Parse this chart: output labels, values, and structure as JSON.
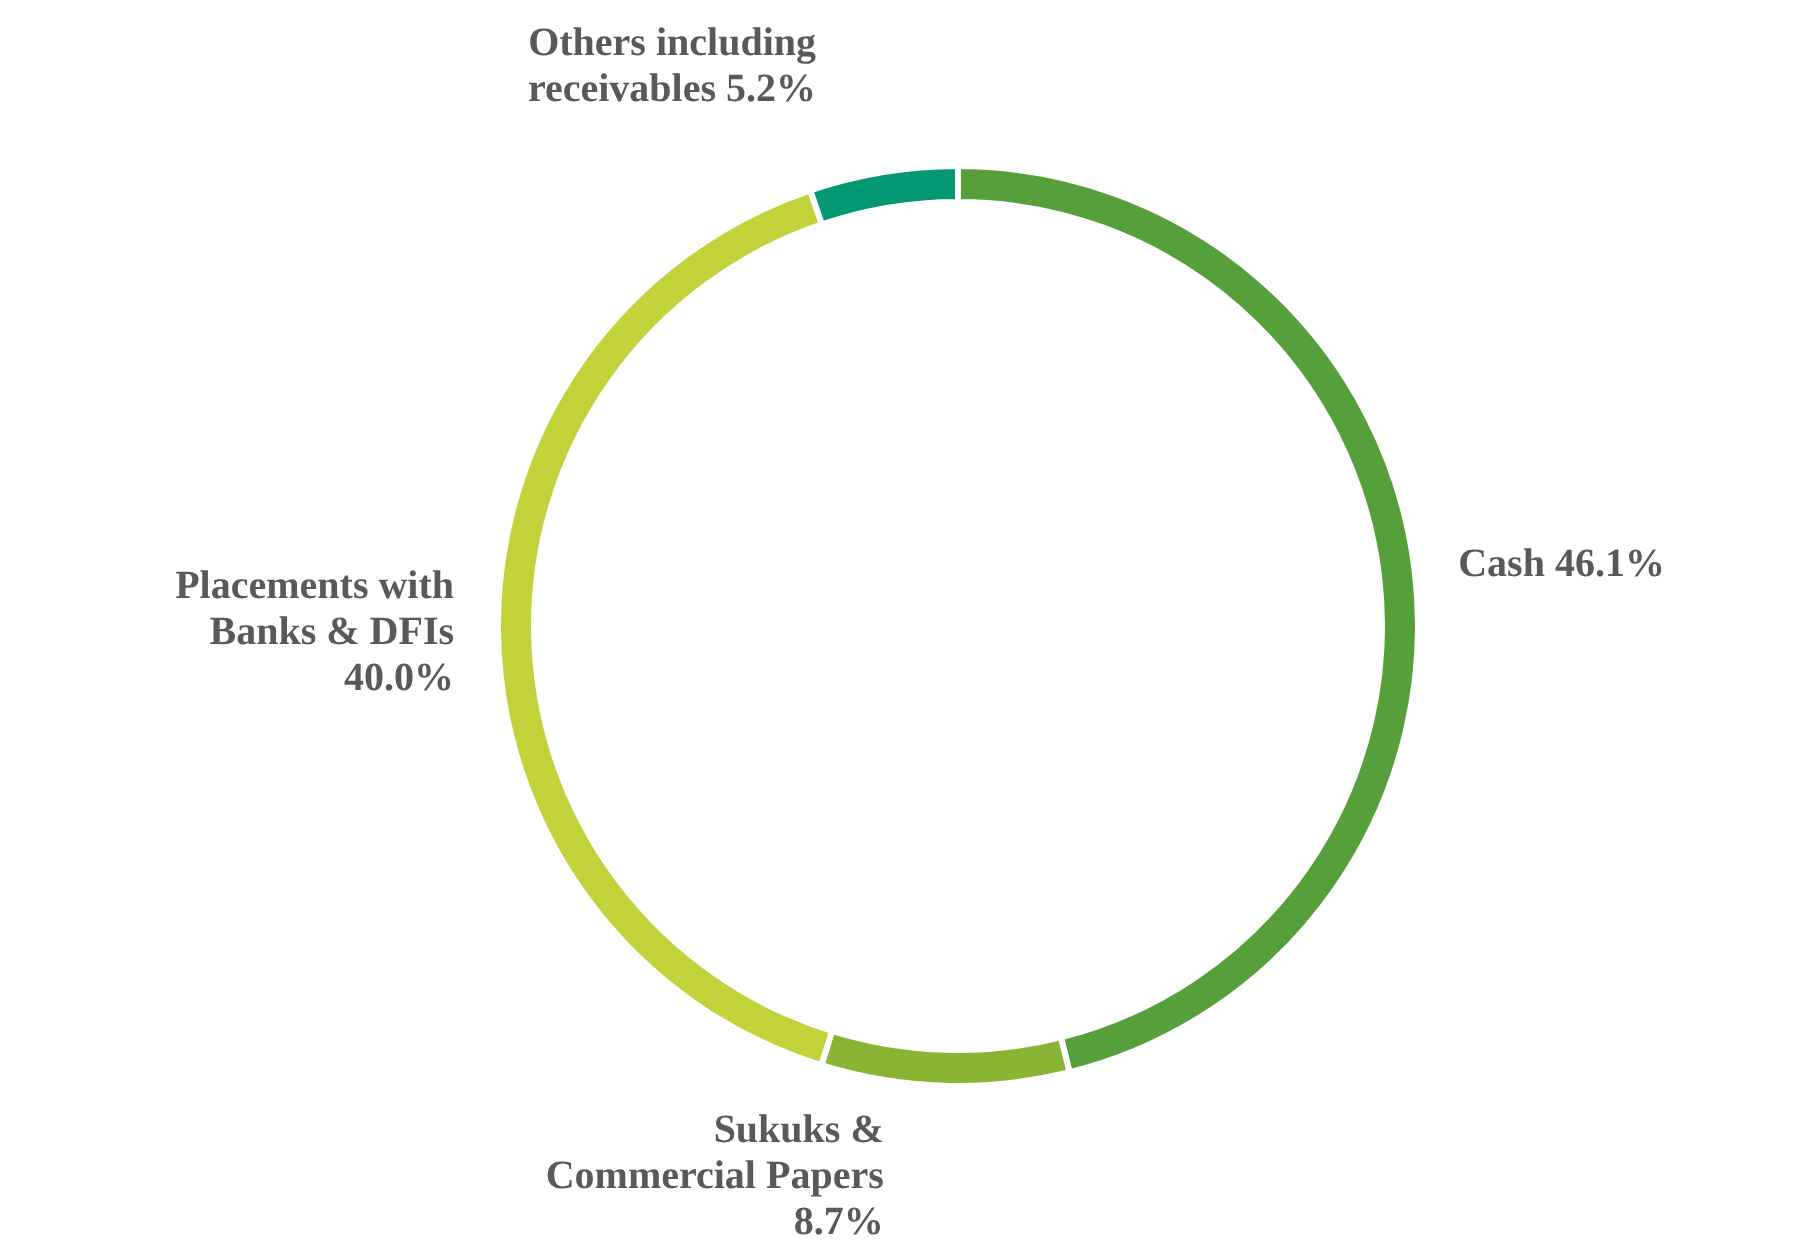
{
  "chart_data": {
    "type": "donut",
    "categories": [
      "Cash",
      "Sukuks & Commercial Papers",
      "Placements with Banks & DFIs",
      "Others including receivables"
    ],
    "values": [
      46.1,
      8.7,
      40.0,
      5.2
    ],
    "value_labels": [
      "46.1%",
      "8.7%",
      "40.0%",
      "5.2%"
    ],
    "colors": [
      "#55a03a",
      "#8ab534",
      "#c3d13b",
      "#049775"
    ],
    "legend": false
  }
}
